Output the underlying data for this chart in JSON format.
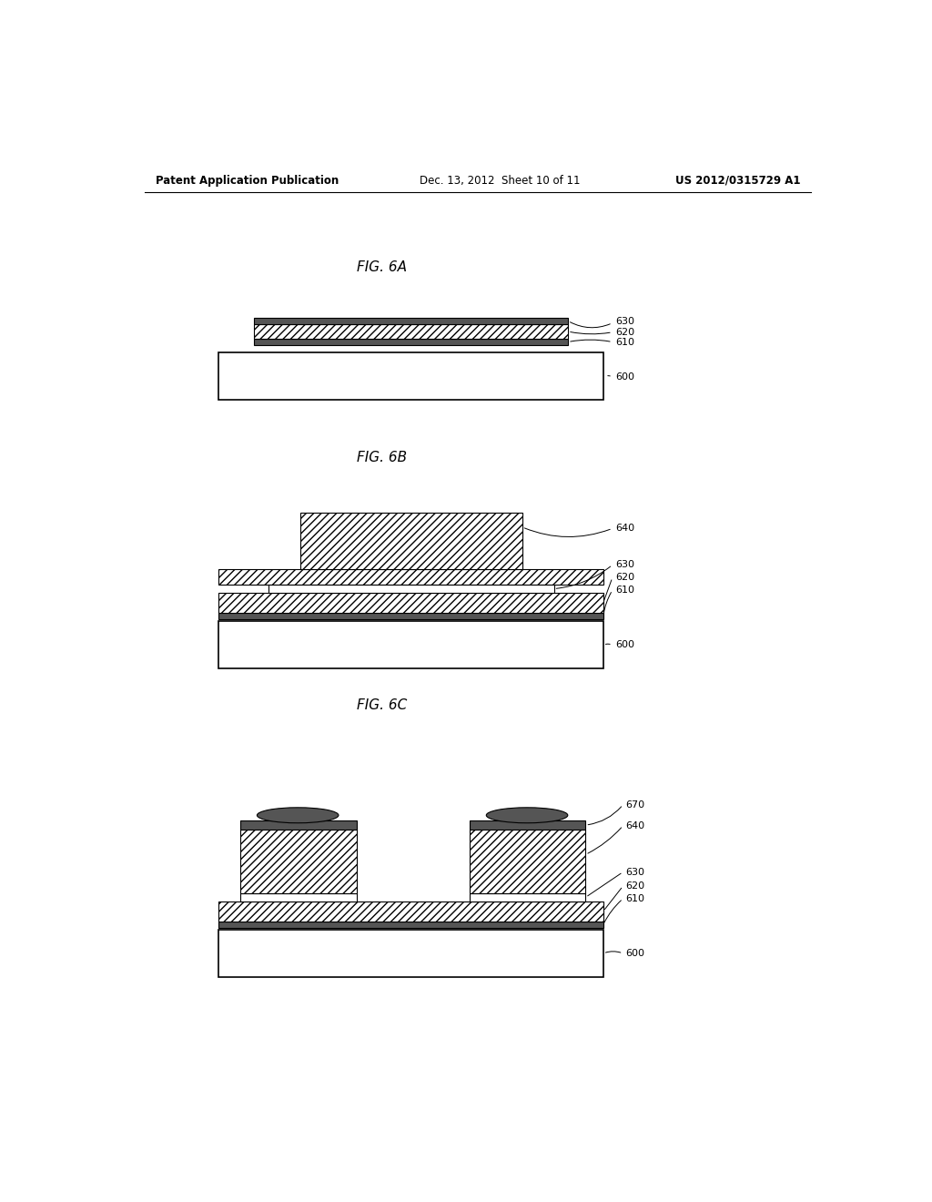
{
  "header_left": "Patent Application Publication",
  "header_mid": "Dec. 13, 2012  Sheet 10 of 11",
  "header_right": "US 2012/0315729 A1",
  "bg_color": "#ffffff",
  "hatch_color": "#000000",
  "dark_layer_color": "#555555",
  "light_layer_color": "#cccccc",
  "substrate_face": "#ffffff"
}
